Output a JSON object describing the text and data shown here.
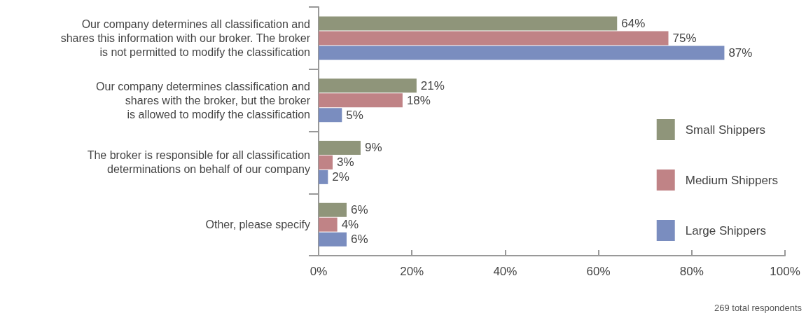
{
  "chart_data": {
    "type": "bar",
    "orientation": "horizontal",
    "categories": [
      "Our company determines all classification and\nshares this information with our broker. The broker\nis not permitted to modify the classification",
      "Our company determines classification and\nshares with the broker, but the broker\nis allowed to modify the classification",
      "The broker is responsible for all classification\ndeterminations on behalf of our company",
      "Other, please specify"
    ],
    "series": [
      {
        "name": "Small Shippers",
        "color": "#8f957a",
        "values": [
          64,
          21,
          9,
          6
        ],
        "value_labels": [
          "64%",
          "21%",
          "9%",
          "6%"
        ]
      },
      {
        "name": "Medium Shippers",
        "color": "#c08386",
        "values": [
          75,
          18,
          3,
          4
        ],
        "value_labels": [
          "75%",
          "18%",
          "3%",
          "4%"
        ]
      },
      {
        "name": "Large Shippers",
        "color": "#7a8dbf",
        "values": [
          87,
          5,
          2,
          6
        ],
        "value_labels": [
          "87%",
          "5%",
          "2%",
          "6%"
        ]
      }
    ],
    "xlim": [
      0,
      100
    ],
    "xticks": [
      {
        "value": 0,
        "label": "0%"
      },
      {
        "value": 20,
        "label": "20%"
      },
      {
        "value": 40,
        "label": "40%"
      },
      {
        "value": 60,
        "label": "60%"
      },
      {
        "value": 80,
        "label": "80%"
      },
      {
        "value": 100,
        "label": "100%"
      }
    ],
    "grid": false,
    "legend": "right",
    "annotations": [
      "269 total respondents"
    ]
  }
}
